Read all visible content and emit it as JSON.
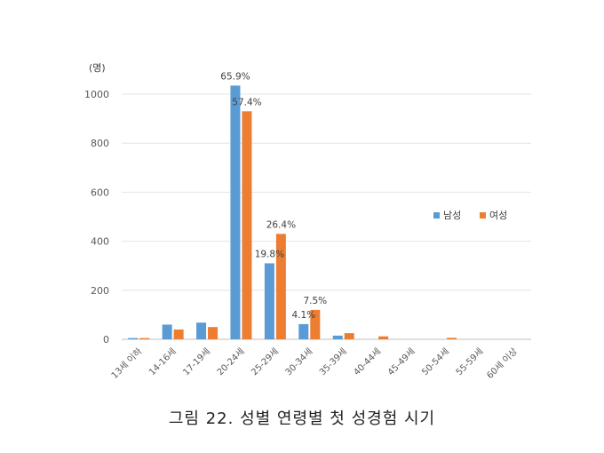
{
  "chart_data": {
    "type": "bar",
    "title": "그림 22. 성별 연령별 첫 성경험 시기",
    "ylabel": "(명)",
    "ylim": [
      0,
      1000
    ],
    "yticks": [
      0,
      200,
      400,
      600,
      800,
      1000
    ],
    "grid": true,
    "legend_position": "right",
    "categories": [
      "13세 이하",
      "14-16세",
      "17-19세",
      "20-24세",
      "25-29세",
      "30-34세",
      "35-39세",
      "40-44세",
      "45-49세",
      "50-54세",
      "55-59세",
      "60세 이상"
    ],
    "series": [
      {
        "name": "남성",
        "color": "#5B9BD5",
        "values": [
          5,
          60,
          68,
          1035,
          310,
          62,
          15,
          0,
          0,
          0,
          0,
          0
        ],
        "labels": [
          "",
          "",
          "",
          "65.9%",
          "19.8%",
          "4.1%",
          "",
          "",
          "",
          "",
          "",
          ""
        ]
      },
      {
        "name": "여성",
        "color": "#ED7D31",
        "values": [
          5,
          40,
          50,
          930,
          430,
          120,
          25,
          12,
          0,
          6,
          0,
          0
        ],
        "labels": [
          "",
          "",
          "",
          "57.4%",
          "26.4%",
          "7.5%",
          "",
          "",
          "",
          "",
          "",
          ""
        ]
      }
    ]
  }
}
